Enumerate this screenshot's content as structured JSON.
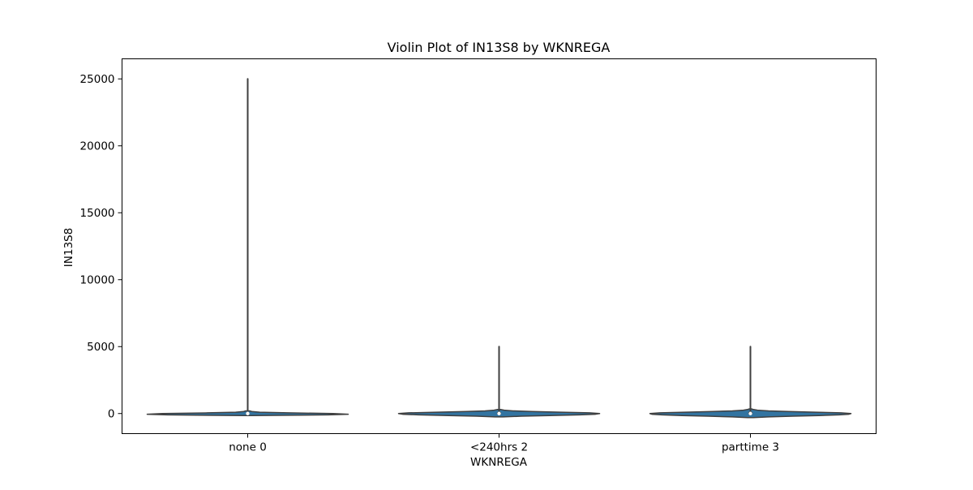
{
  "chart_data": {
    "type": "violin",
    "title": "Violin Plot of IN13S8 by WKNREGA",
    "xlabel": "WKNREGA",
    "ylabel": "IN13S8",
    "categories": [
      "none 0",
      "<240hrs 2",
      "parttime 3"
    ],
    "ylim": [
      -1500,
      26500
    ],
    "yticks": [
      0,
      5000,
      10000,
      15000,
      20000,
      25000
    ],
    "ytick_labels": [
      "0",
      "5000",
      "10000",
      "15000",
      "20000",
      "25000"
    ],
    "grid": false,
    "legend": "none",
    "fill_color": "#3274a1",
    "edge_color": "#3f3f3f",
    "violins": [
      {
        "category": "none 0",
        "max": 25000,
        "median": 0,
        "q1": 0,
        "q3": 50,
        "profile": [
          [
            -150,
            0.04
          ],
          [
            -100,
            0.8
          ],
          [
            -50,
            1.0
          ],
          [
            0,
            0.85
          ],
          [
            50,
            0.4
          ],
          [
            100,
            0.12
          ],
          [
            150,
            0.04
          ],
          [
            200,
            0.02
          ]
        ]
      },
      {
        "category": "<240hrs 2",
        "max": 5000,
        "median": 0,
        "q1": -50,
        "q3": 100,
        "profile": [
          [
            -250,
            0.04
          ],
          [
            -200,
            0.22
          ],
          [
            -150,
            0.5
          ],
          [
            -100,
            0.8
          ],
          [
            -50,
            0.96
          ],
          [
            0,
            1.0
          ],
          [
            50,
            0.9
          ],
          [
            100,
            0.62
          ],
          [
            150,
            0.33
          ],
          [
            200,
            0.14
          ],
          [
            250,
            0.05
          ],
          [
            300,
            0.02
          ]
        ]
      },
      {
        "category": "parttime 3",
        "max": 5000,
        "median": 0,
        "q1": -50,
        "q3": 120,
        "profile": [
          [
            -300,
            0.03
          ],
          [
            -250,
            0.18
          ],
          [
            -200,
            0.42
          ],
          [
            -150,
            0.68
          ],
          [
            -100,
            0.88
          ],
          [
            -50,
            0.98
          ],
          [
            0,
            1.0
          ],
          [
            50,
            0.9
          ],
          [
            100,
            0.65
          ],
          [
            150,
            0.38
          ],
          [
            200,
            0.18
          ],
          [
            250,
            0.07
          ],
          [
            300,
            0.03
          ],
          [
            350,
            0.01
          ]
        ]
      }
    ]
  }
}
